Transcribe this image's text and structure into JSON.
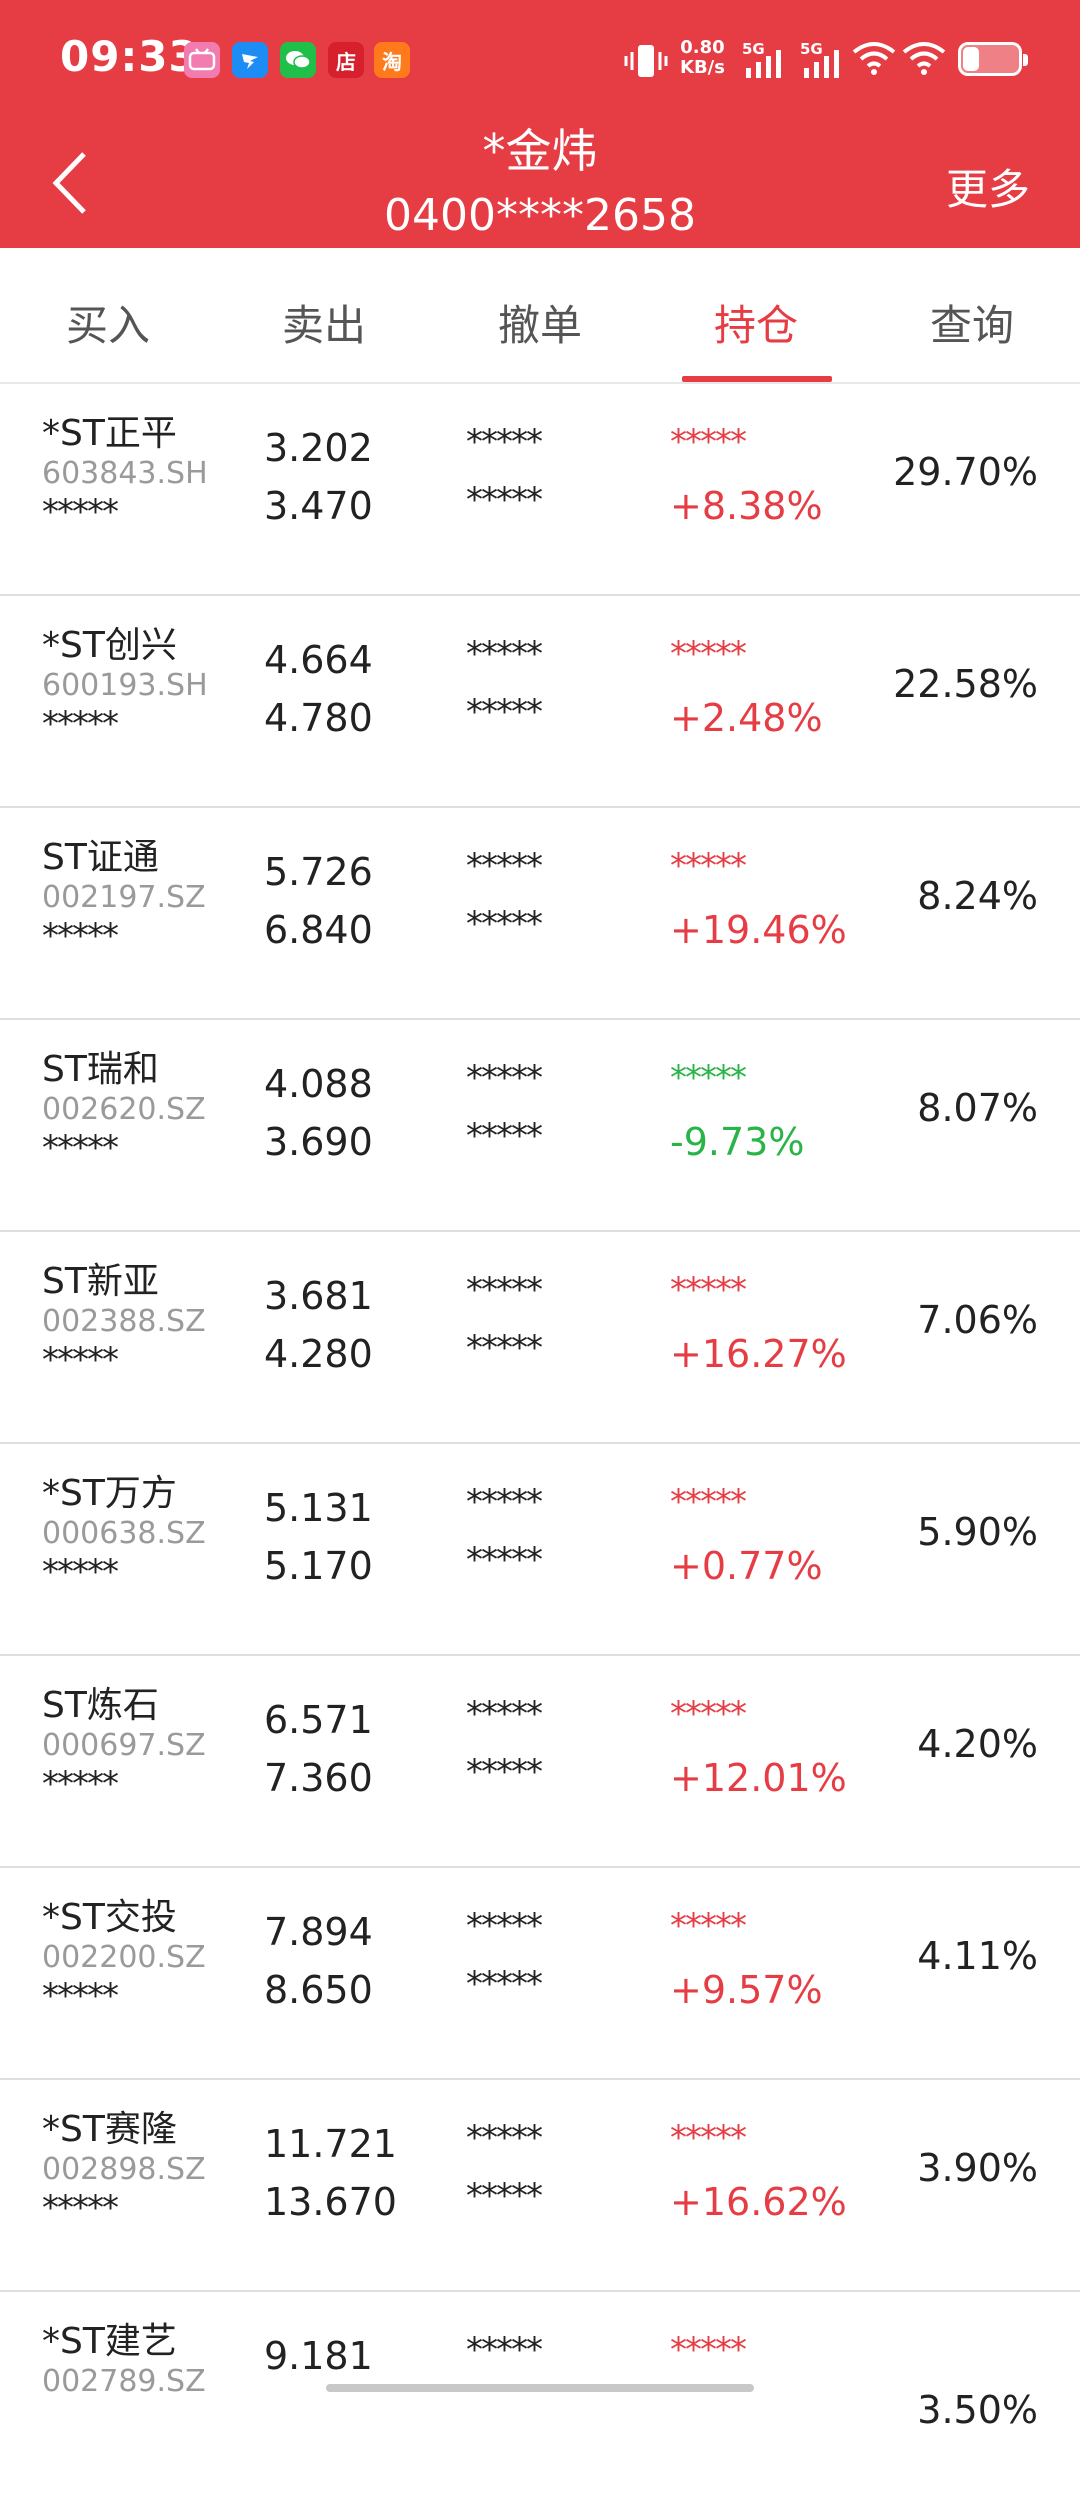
{
  "status_bar": {
    "time": "09:33",
    "net_speed_value": "0.80",
    "net_speed_unit": "KB/s",
    "signal1": "5G",
    "signal2": "5G",
    "notifications": [
      "bilibili-icon",
      "dingtalk-icon",
      "wechat-icon",
      "shop-icon",
      "taobao-icon"
    ],
    "shop_label": "店",
    "taobao_label": "淘"
  },
  "header": {
    "back_icon": "chevron-left-icon",
    "title": "*金炜",
    "account": "0400****2658",
    "more_label": "更多",
    "bg_color": "#e63c44"
  },
  "tabs": [
    {
      "label": "买入",
      "active": false
    },
    {
      "label": "卖出",
      "active": false
    },
    {
      "label": "撤单",
      "active": false
    },
    {
      "label": "持仓",
      "active": true
    },
    {
      "label": "查询",
      "active": false
    }
  ],
  "positions": [
    {
      "name": "*ST正平",
      "code": "603843.SH",
      "mask": "*****",
      "cost": "3.202",
      "price": "3.470",
      "mask_a": "*****",
      "mask_b": "*****",
      "pl_mask": "*****",
      "pl_pct": "+8.38%",
      "direction": "up",
      "ratio": "29.70%"
    },
    {
      "name": "*ST创兴",
      "code": "600193.SH",
      "mask": "*****",
      "cost": "4.664",
      "price": "4.780",
      "mask_a": "*****",
      "mask_b": "*****",
      "pl_mask": "*****",
      "pl_pct": "+2.48%",
      "direction": "up",
      "ratio": "22.58%"
    },
    {
      "name": "ST证通",
      "code": "002197.SZ",
      "mask": "*****",
      "cost": "5.726",
      "price": "6.840",
      "mask_a": "*****",
      "mask_b": "*****",
      "pl_mask": "*****",
      "pl_pct": "+19.46%",
      "direction": "up",
      "ratio": "8.24%"
    },
    {
      "name": "ST瑞和",
      "code": "002620.SZ",
      "mask": "*****",
      "cost": "4.088",
      "price": "3.690",
      "mask_a": "*****",
      "mask_b": "*****",
      "pl_mask": "*****",
      "pl_pct": "-9.73%",
      "direction": "down",
      "ratio": "8.07%"
    },
    {
      "name": "ST新亚",
      "code": "002388.SZ",
      "mask": "*****",
      "cost": "3.681",
      "price": "4.280",
      "mask_a": "*****",
      "mask_b": "*****",
      "pl_mask": "*****",
      "pl_pct": "+16.27%",
      "direction": "up",
      "ratio": "7.06%"
    },
    {
      "name": "*ST万方",
      "code": "000638.SZ",
      "mask": "*****",
      "cost": "5.131",
      "price": "5.170",
      "mask_a": "*****",
      "mask_b": "*****",
      "pl_mask": "*****",
      "pl_pct": "+0.77%",
      "direction": "up",
      "ratio": "5.90%"
    },
    {
      "name": "ST炼石",
      "code": "000697.SZ",
      "mask": "*****",
      "cost": "6.571",
      "price": "7.360",
      "mask_a": "*****",
      "mask_b": "*****",
      "pl_mask": "*****",
      "pl_pct": "+12.01%",
      "direction": "up",
      "ratio": "4.20%"
    },
    {
      "name": "*ST交投",
      "code": "002200.SZ",
      "mask": "*****",
      "cost": "7.894",
      "price": "8.650",
      "mask_a": "*****",
      "mask_b": "*****",
      "pl_mask": "*****",
      "pl_pct": "+9.57%",
      "direction": "up",
      "ratio": "4.11%"
    },
    {
      "name": "*ST赛隆",
      "code": "002898.SZ",
      "mask": "*****",
      "cost": "11.721",
      "price": "13.670",
      "mask_a": "*****",
      "mask_b": "*****",
      "pl_mask": "*****",
      "pl_pct": "+16.62%",
      "direction": "up",
      "ratio": "3.90%"
    },
    {
      "name": "*ST建艺",
      "code": "002789.SZ",
      "mask": "*****",
      "cost": "9.181",
      "price": "",
      "mask_a": "*****",
      "mask_b": "",
      "pl_mask": "*****",
      "pl_pct": "",
      "direction": "up",
      "ratio": "3.50%"
    }
  ],
  "colors": {
    "up": "#e63c44",
    "down": "#28b447",
    "accent": "#e63c44"
  }
}
